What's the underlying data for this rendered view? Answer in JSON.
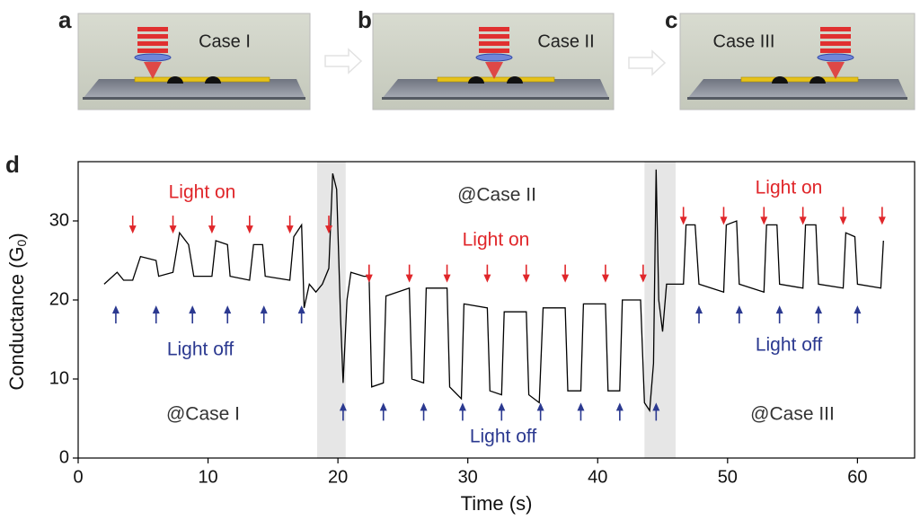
{
  "panels": [
    {
      "label": "a",
      "case": "Case I"
    },
    {
      "label": "b",
      "case": "Case II"
    },
    {
      "label": "c",
      "case": "Case III"
    }
  ],
  "chart_data": {
    "type": "line",
    "panel_label": "d",
    "x_label": "Time (s)",
    "y_label": "Conductance (G",
    "y_label_sub": "0",
    "y_label_end": ")",
    "xlim": [
      0,
      64.4
    ],
    "ylim": [
      0,
      37.5
    ],
    "xticks": [
      0,
      10,
      20,
      30,
      40,
      50,
      60
    ],
    "yticks": [
      0,
      10,
      20,
      30
    ],
    "color": "#000000",
    "highlight_ranges": [
      [
        18.4,
        20.6
      ],
      [
        43.6,
        46
      ]
    ],
    "highlight_color": "#e6e6e6",
    "annotations": [
      "Light on",
      "Light on",
      "Light on",
      "Light off",
      "Light off",
      "Light off",
      "@Case I",
      "@Case II",
      "@Case III"
    ],
    "light_on_color": "#e0262a",
    "light_off_color": "#2b3990",
    "light_on_arrows": [
      {
        "x": 4.2,
        "y": 28.4
      },
      {
        "x": 7.3,
        "y": 28.4
      },
      {
        "x": 10.3,
        "y": 28.4
      },
      {
        "x": 13.2,
        "y": 28.4
      },
      {
        "x": 16.3,
        "y": 28.4
      },
      {
        "x": 19.3,
        "y": 28.4
      },
      {
        "x": 22.4,
        "y": 22.2
      },
      {
        "x": 25.5,
        "y": 22.2
      },
      {
        "x": 28.4,
        "y": 22.2
      },
      {
        "x": 31.5,
        "y": 22.2
      },
      {
        "x": 34.5,
        "y": 22.2
      },
      {
        "x": 37.5,
        "y": 22.2
      },
      {
        "x": 40.6,
        "y": 22.2
      },
      {
        "x": 43.5,
        "y": 22.2
      },
      {
        "x": 46.6,
        "y": 29.5
      },
      {
        "x": 49.7,
        "y": 29.5
      },
      {
        "x": 52.8,
        "y": 29.5
      },
      {
        "x": 55.8,
        "y": 29.5
      },
      {
        "x": 58.9,
        "y": 29.5
      },
      {
        "x": 61.9,
        "y": 29.5
      }
    ],
    "light_off_arrows": [
      {
        "x": 2.9,
        "y": 19.3
      },
      {
        "x": 6.0,
        "y": 19.3
      },
      {
        "x": 8.8,
        "y": 19.3
      },
      {
        "x": 11.5,
        "y": 19.3
      },
      {
        "x": 14.3,
        "y": 19.3
      },
      {
        "x": 17.2,
        "y": 19.3
      },
      {
        "x": 20.4,
        "y": 7
      },
      {
        "x": 23.5,
        "y": 7
      },
      {
        "x": 26.6,
        "y": 7
      },
      {
        "x": 29.6,
        "y": 7
      },
      {
        "x": 32.6,
        "y": 7
      },
      {
        "x": 35.6,
        "y": 7
      },
      {
        "x": 38.7,
        "y": 7
      },
      {
        "x": 41.7,
        "y": 7
      },
      {
        "x": 44.5,
        "y": 7
      },
      {
        "x": 47.8,
        "y": 19.3
      },
      {
        "x": 50.9,
        "y": 19.3
      },
      {
        "x": 54.0,
        "y": 19.3
      },
      {
        "x": 57.0,
        "y": 19.3
      },
      {
        "x": 60.0,
        "y": 19.3
      }
    ],
    "x": [
      2,
      3,
      3.5,
      4.2,
      4.8,
      6,
      6.2,
      7.3,
      7.8,
      8.5,
      8.9,
      10.3,
      10.6,
      11.5,
      11.7,
      13.2,
      13.5,
      14.2,
      14.4,
      16.3,
      16.6,
      17.2,
      17.4,
      17.8,
      18.3,
      18.8,
      19.3,
      19.6,
      19.9,
      20.2,
      20.4,
      20.7,
      21,
      22,
      22.4,
      22.6,
      23.5,
      23.7,
      25.5,
      25.7,
      26.6,
      26.8,
      28.4,
      28.6,
      29.5,
      29.7,
      31.5,
      31.7,
      32.6,
      32.8,
      34.5,
      34.7,
      35.5,
      35.8,
      37.5,
      37.7,
      38.7,
      38.9,
      40.6,
      40.8,
      41.7,
      41.9,
      43.3,
      43.6,
      44,
      44.3,
      44.5,
      44.7,
      45,
      45.3,
      46,
      46.6,
      46.8,
      47.5,
      47.8,
      49.7,
      49.9,
      50.7,
      50.9,
      52.8,
      53,
      53.8,
      54,
      55.8,
      56,
      56.8,
      57,
      58.9,
      59.1,
      59.8,
      60,
      61.8,
      62
    ],
    "values": [
      22,
      23.5,
      22.5,
      22.5,
      25.5,
      25,
      23,
      23.5,
      28.5,
      27,
      23,
      23,
      27.5,
      27,
      23,
      22.5,
      27,
      27,
      23,
      22.5,
      28,
      29.5,
      19,
      22,
      21,
      22,
      24,
      36,
      34,
      18,
      9.5,
      20,
      23.5,
      23,
      23,
      9,
      9.5,
      20.5,
      21.5,
      10,
      9.5,
      21.5,
      21.5,
      9,
      7.5,
      19.5,
      19,
      8.5,
      8,
      18.5,
      18.5,
      8,
      7,
      19,
      19,
      8.5,
      8.5,
      19.5,
      19.5,
      8.5,
      8.5,
      20,
      20,
      7,
      6,
      12,
      36.5,
      20,
      16,
      22,
      22,
      22,
      29.5,
      29.5,
      22,
      21,
      29.5,
      30,
      22,
      21,
      29.5,
      29.5,
      22,
      21.5,
      29.5,
      29.5,
      22,
      21.5,
      28.5,
      28,
      22,
      21.5,
      27.5
    ]
  }
}
